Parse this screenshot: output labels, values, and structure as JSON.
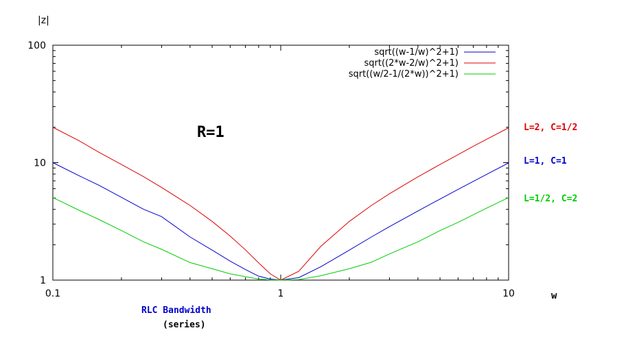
{
  "chart_data": {
    "type": "line",
    "ylabel": "|z|",
    "xlabel": "w",
    "x_scale": "log",
    "y_scale": "log",
    "xlim": [
      0.1,
      10
    ],
    "ylim": [
      1,
      100
    ],
    "x_ticks": [
      {
        "value": 0.1,
        "label": "0.1"
      },
      {
        "value": 1,
        "label": "1"
      },
      {
        "value": 10,
        "label": "10"
      }
    ],
    "y_ticks": [
      {
        "value": 1,
        "label": "1"
      },
      {
        "value": 10,
        "label": "10"
      },
      {
        "value": 100,
        "label": "100"
      }
    ],
    "grid": false,
    "legend_position": "top-right",
    "series": [
      {
        "name": "sqrt((w-1/w)^2+1)",
        "color": "#0000cc",
        "x": [
          0.1,
          0.13,
          0.16,
          0.2,
          0.25,
          0.3,
          0.4,
          0.5,
          0.6,
          0.7,
          0.8,
          0.9,
          1,
          1.2,
          1.5,
          2,
          2.5,
          3,
          4,
          5,
          6,
          7,
          8,
          10
        ],
        "y": [
          10.0,
          7.76,
          6.39,
          5.06,
          4.01,
          3.47,
          2.33,
          1.8,
          1.45,
          1.23,
          1.08,
          1.02,
          1.0,
          1.05,
          1.3,
          1.8,
          2.33,
          2.85,
          3.88,
          4.9,
          5.92,
          6.93,
          7.94,
          9.95
        ]
      },
      {
        "name": "sqrt((2*w-2/w)^2+1)",
        "color": "#dd0000",
        "x": [
          0.1,
          0.13,
          0.16,
          0.2,
          0.25,
          0.3,
          0.4,
          0.5,
          0.6,
          0.7,
          0.8,
          0.9,
          1,
          1.2,
          1.5,
          2,
          2.5,
          3,
          4,
          5,
          6,
          7,
          8,
          10
        ],
        "y": [
          20.0,
          15.4,
          12.2,
          9.65,
          7.6,
          6.15,
          4.32,
          3.16,
          2.37,
          1.81,
          1.4,
          1.13,
          1.0,
          1.19,
          1.94,
          3.16,
          4.32,
          5.43,
          7.57,
          9.65,
          11.7,
          13.8,
          15.8,
          19.8
        ]
      },
      {
        "name": "sqrt((w/2-1/(2*w))^2+1)",
        "color": "#00cc00",
        "x": [
          0.1,
          0.13,
          0.16,
          0.2,
          0.25,
          0.3,
          0.4,
          0.5,
          0.6,
          0.7,
          0.8,
          0.9,
          1,
          1.2,
          1.5,
          2,
          2.5,
          3,
          4,
          5,
          6,
          7,
          8,
          10
        ],
        "y": [
          5.05,
          3.94,
          3.27,
          2.64,
          2.12,
          1.83,
          1.41,
          1.25,
          1.13,
          1.07,
          1.02,
          1.005,
          1.0,
          1.01,
          1.09,
          1.25,
          1.42,
          1.67,
          2.12,
          2.64,
          3.1,
          3.6,
          4.1,
          5.05
        ]
      }
    ],
    "annotations": {
      "r_label": "R=1",
      "red_params": "L=2, C=1/2",
      "blue_params": "L=1, C=1",
      "green_params": "L=1/2, C=2",
      "caption_title": "RLC Bandwidth",
      "caption_sub": "(series)"
    }
  },
  "colors": {
    "red_label": "#dd0000",
    "blue_label": "#0000cc",
    "green_label": "#00cc00",
    "caption_title": "#0000cc"
  }
}
